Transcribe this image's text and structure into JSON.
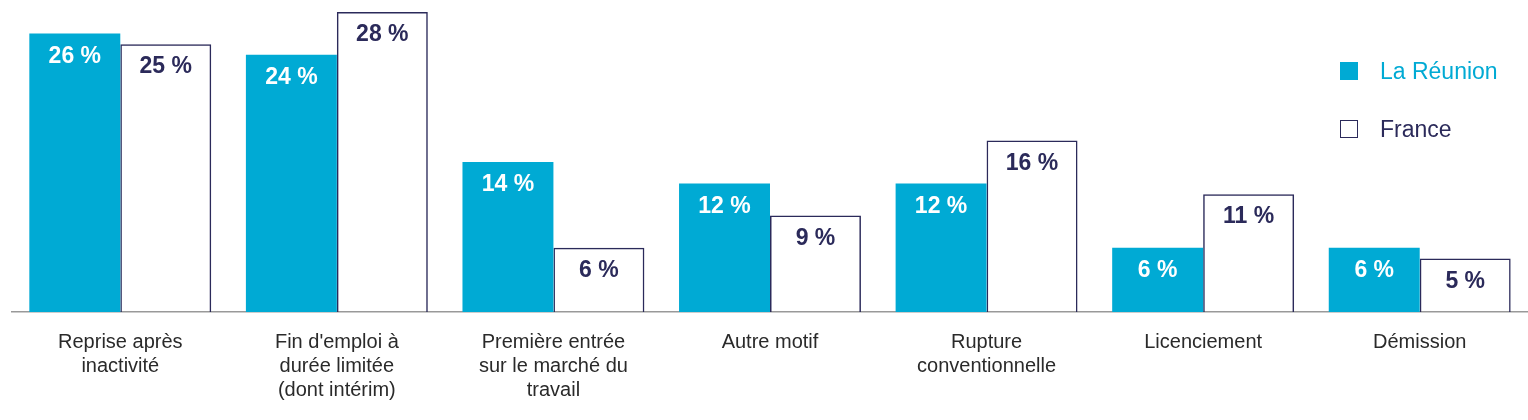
{
  "chart_data": {
    "type": "bar",
    "categories": [
      "Reprise après inactivité",
      "Fin d'emploi à durée limitée (dont intérim)",
      "Première entrée sur le marché du travail",
      "Autre motif",
      "Rupture conventionnelle",
      "Licenciement",
      "Démission"
    ],
    "series": [
      {
        "name": "La Réunion",
        "color": "#00aad4",
        "values": [
          26,
          24,
          14,
          12,
          12,
          6,
          6
        ],
        "value_labels": [
          "26 %",
          "24 %",
          "14 %",
          "12 %",
          "12 %",
          "6 %",
          "6 %"
        ]
      },
      {
        "name": "France",
        "color": "#2b2a5a",
        "values": [
          25,
          28,
          6,
          9,
          16,
          11,
          5
        ],
        "value_labels": [
          "25 %",
          "28 %",
          "6 %",
          "9 %",
          "16 %",
          "11 %",
          "5 %"
        ]
      }
    ],
    "legend": "top right"
  }
}
